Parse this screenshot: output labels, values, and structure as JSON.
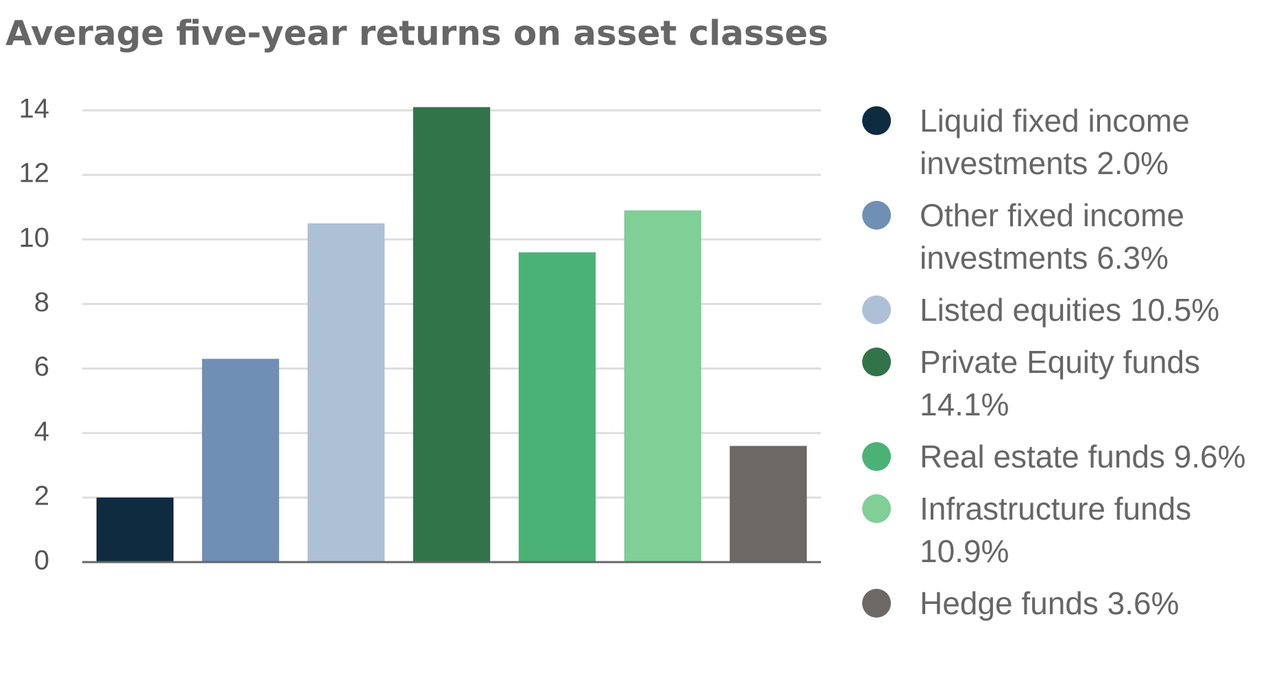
{
  "chart_data": {
    "type": "bar",
    "title": "Average five-year returns on asset classes",
    "categories": [
      "Liquid fixed income investments",
      "Other fixed income investments",
      "Listed equities",
      "Private Equity funds",
      "Real estate funds",
      "Infrastructure funds",
      "Hedge funds"
    ],
    "values": [
      2.0,
      6.3,
      10.5,
      14.1,
      9.6,
      10.9,
      3.6
    ],
    "value_labels": [
      "2.0%",
      "6.3%",
      "10.5%",
      "14.1%",
      "9.6%",
      "10.9%",
      "3.6%"
    ],
    "colors": [
      "#0f2b40",
      "#6f8fb4",
      "#adc0d6",
      "#31744a",
      "#4bb276",
      "#80cf97",
      "#6b6866"
    ],
    "ylim": [
      0,
      14
    ],
    "yticks": [
      0,
      2,
      4,
      6,
      8,
      10,
      12,
      14
    ],
    "grid": true,
    "legend": "right"
  }
}
